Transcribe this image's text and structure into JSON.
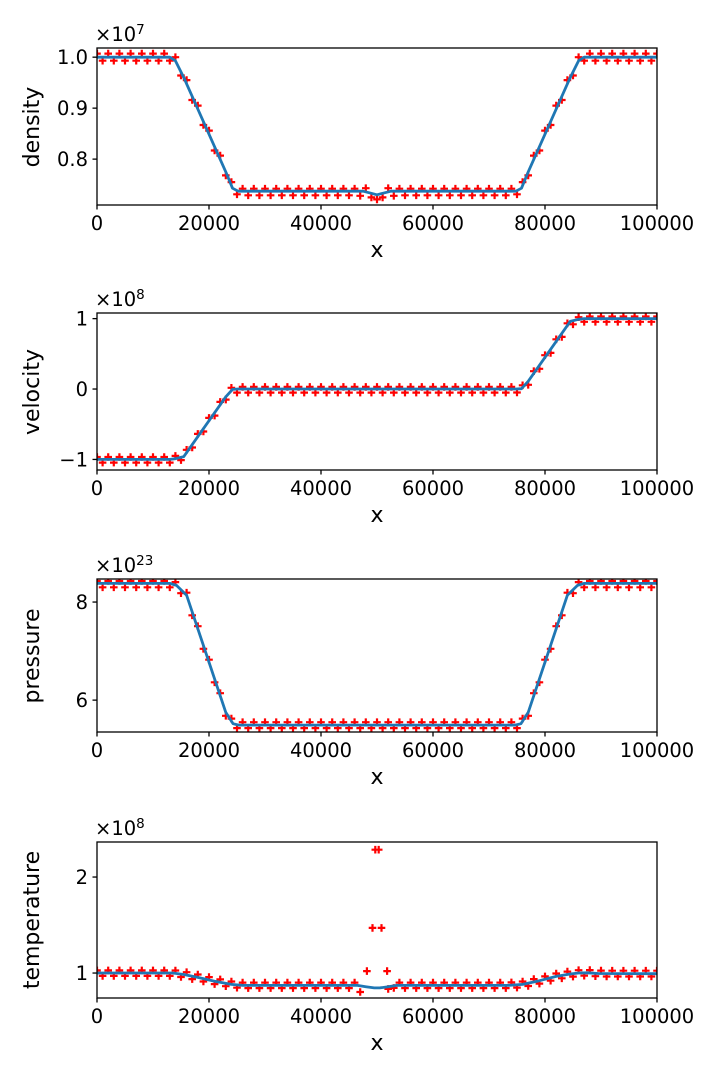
{
  "figure": {
    "background": "#ffffff",
    "line_color": "#1f77b4",
    "marker_color": "#ff0000",
    "marker_style": "plus",
    "text_color": "#000000",
    "grid": false,
    "legend": null
  },
  "chart_data": [
    {
      "type": "line+scatter",
      "title": "",
      "ylabel": "density",
      "xlabel": "x",
      "offset_text": {
        "base": "×10",
        "exp": "7"
      },
      "xlim": [
        0,
        100000
      ],
      "ylim": [
        0.71,
        1.018
      ],
      "xticks": [
        0,
        20000,
        40000,
        60000,
        80000,
        100000
      ],
      "xtick_labels": [
        "0",
        "20000",
        "40000",
        "60000",
        "80000",
        "100000"
      ],
      "yticks": [
        0.8,
        0.9,
        1.0
      ],
      "ytick_labels": [
        "0.8",
        "0.9",
        "1.0"
      ],
      "series": {
        "line": {
          "x": [
            0,
            13000,
            14000,
            15500,
            23000,
            24200,
            25200,
            47500,
            49000,
            50000,
            51000,
            52500,
            74800,
            75800,
            77000,
            84500,
            86000,
            87000,
            100000
          ],
          "y": [
            1.0,
            1.0,
            0.993,
            0.96,
            0.775,
            0.743,
            0.737,
            0.737,
            0.733,
            0.73,
            0.733,
            0.737,
            0.737,
            0.743,
            0.775,
            0.96,
            0.993,
            1.0,
            1.0
          ]
        },
        "markers": {
          "x_start": 0,
          "x_step": 1000,
          "y": [
            1.007,
            0.993,
            1.007,
            0.993,
            1.007,
            0.993,
            1.007,
            0.993,
            1.007,
            0.993,
            1.007,
            0.993,
            1.007,
            0.993,
            1.0,
            0.964,
            0.955,
            0.916,
            0.905,
            0.867,
            0.856,
            0.817,
            0.807,
            0.768,
            0.755,
            0.731,
            0.742,
            0.729,
            0.742,
            0.729,
            0.742,
            0.729,
            0.742,
            0.729,
            0.742,
            0.729,
            0.742,
            0.729,
            0.742,
            0.729,
            0.742,
            0.729,
            0.742,
            0.729,
            0.742,
            0.729,
            0.742,
            0.728,
            0.743,
            0.725,
            0.721,
            0.725,
            0.743,
            0.728,
            0.742,
            0.729,
            0.742,
            0.729,
            0.742,
            0.729,
            0.742,
            0.729,
            0.742,
            0.729,
            0.742,
            0.729,
            0.742,
            0.729,
            0.742,
            0.729,
            0.742,
            0.729,
            0.742,
            0.729,
            0.742,
            0.731,
            0.755,
            0.768,
            0.807,
            0.817,
            0.856,
            0.867,
            0.905,
            0.916,
            0.955,
            0.964,
            1.0,
            0.993,
            1.007,
            0.993,
            1.007,
            0.993,
            1.007,
            0.993,
            1.007,
            0.993,
            1.007,
            0.993,
            1.007,
            0.993,
            1.007
          ]
        }
      }
    },
    {
      "type": "line+scatter",
      "title": "",
      "ylabel": "velocity",
      "xlabel": "x",
      "offset_text": {
        "base": "×10",
        "exp": "8"
      },
      "xlim": [
        0,
        100000
      ],
      "ylim": [
        -1.15,
        1.08
      ],
      "xticks": [
        0,
        20000,
        40000,
        60000,
        80000,
        100000
      ],
      "xtick_labels": [
        "0",
        "20000",
        "40000",
        "60000",
        "80000",
        "100000"
      ],
      "yticks": [
        -1,
        0,
        1
      ],
      "ytick_labels": [
        "−1",
        "0",
        "1"
      ],
      "series": {
        "line": {
          "x": [
            0,
            13000,
            14000,
            15500,
            23000,
            24200,
            25200,
            74800,
            75800,
            77000,
            84500,
            86000,
            87000,
            100000
          ],
          "y": [
            -1.0,
            -1.0,
            -0.99,
            -0.96,
            -0.11,
            -0.005,
            0.0,
            0.0,
            0.005,
            0.11,
            0.96,
            0.99,
            1.0,
            1.0
          ]
        },
        "markers": {
          "x_start": 0,
          "x_step": 1000,
          "y": [
            -0.965,
            -1.045,
            -0.965,
            -1.045,
            -0.965,
            -1.045,
            -0.965,
            -1.045,
            -0.965,
            -1.045,
            -0.965,
            -1.045,
            -0.965,
            -1.045,
            -0.95,
            -1.01,
            -0.863,
            -0.83,
            -0.637,
            -0.603,
            -0.41,
            -0.377,
            -0.183,
            -0.15,
            0.018,
            -0.051,
            0.03,
            -0.05,
            0.03,
            -0.05,
            0.03,
            -0.05,
            0.03,
            -0.05,
            0.03,
            -0.05,
            0.03,
            -0.05,
            0.03,
            -0.05,
            0.03,
            -0.05,
            0.03,
            -0.05,
            0.03,
            -0.05,
            0.03,
            -0.05,
            0.03,
            -0.05,
            0.03,
            -0.05,
            0.03,
            -0.05,
            0.03,
            -0.05,
            0.03,
            -0.05,
            0.03,
            -0.05,
            0.03,
            -0.05,
            0.03,
            -0.05,
            0.03,
            -0.05,
            0.03,
            -0.05,
            0.03,
            -0.05,
            0.03,
            -0.05,
            0.03,
            -0.05,
            0.03,
            -0.049,
            0.053,
            0.06,
            0.253,
            0.287,
            0.48,
            0.513,
            0.707,
            0.74,
            0.933,
            0.92,
            1.02,
            0.955,
            1.03,
            0.955,
            1.03,
            0.955,
            1.03,
            0.955,
            1.03,
            0.955,
            1.03,
            0.955,
            1.03,
            0.955,
            1.03
          ]
        }
      }
    },
    {
      "type": "line+scatter",
      "title": "",
      "ylabel": "pressure",
      "xlabel": "x",
      "offset_text": {
        "base": "×10",
        "exp": "23"
      },
      "xlim": [
        0,
        100000
      ],
      "ylim": [
        5.35,
        8.47
      ],
      "xticks": [
        0,
        20000,
        40000,
        60000,
        80000,
        100000
      ],
      "xtick_labels": [
        "0",
        "20000",
        "40000",
        "60000",
        "80000",
        "100000"
      ],
      "yticks": [
        6,
        8
      ],
      "ytick_labels": [
        "6",
        "8"
      ],
      "series": {
        "line": {
          "x": [
            0,
            13000,
            14200,
            16000,
            23000,
            24300,
            25300,
            74700,
            75700,
            77000,
            84000,
            85800,
            87000,
            100000
          ],
          "y": [
            8.38,
            8.38,
            8.34,
            8.14,
            5.75,
            5.52,
            5.49,
            5.49,
            5.52,
            5.75,
            8.14,
            8.34,
            8.38,
            8.38
          ]
        },
        "markers": {
          "x_start": 0,
          "x_step": 1000,
          "y": [
            8.43,
            8.3,
            8.43,
            8.3,
            8.43,
            8.3,
            8.43,
            8.3,
            8.43,
            8.3,
            8.43,
            8.3,
            8.43,
            8.3,
            8.407,
            8.181,
            8.19,
            7.729,
            7.507,
            7.046,
            6.824,
            6.363,
            6.141,
            5.68,
            5.623,
            5.429,
            5.55,
            5.43,
            5.55,
            5.43,
            5.55,
            5.43,
            5.55,
            5.43,
            5.55,
            5.43,
            5.55,
            5.43,
            5.55,
            5.43,
            5.55,
            5.43,
            5.55,
            5.43,
            5.55,
            5.43,
            5.55,
            5.43,
            5.55,
            5.43,
            5.55,
            5.43,
            5.55,
            5.43,
            5.55,
            5.43,
            5.55,
            5.43,
            5.55,
            5.43,
            5.55,
            5.43,
            5.55,
            5.43,
            5.55,
            5.43,
            5.55,
            5.43,
            5.55,
            5.43,
            5.55,
            5.43,
            5.55,
            5.43,
            5.55,
            5.429,
            5.623,
            5.68,
            6.141,
            6.363,
            6.824,
            7.046,
            7.507,
            7.729,
            8.19,
            8.181,
            8.407,
            8.3,
            8.43,
            8.3,
            8.43,
            8.3,
            8.43,
            8.3,
            8.43,
            8.3,
            8.43,
            8.3,
            8.43,
            8.3,
            8.43
          ]
        }
      }
    },
    {
      "type": "line+scatter",
      "title": "",
      "ylabel": "temperature",
      "xlabel": "x",
      "offset_text": {
        "base": "×10",
        "exp": "8"
      },
      "xlim": [
        0,
        100000
      ],
      "ylim": [
        0.74,
        2.365
      ],
      "xticks": [
        0,
        20000,
        40000,
        60000,
        80000,
        100000
      ],
      "xtick_labels": [
        "0",
        "20000",
        "40000",
        "60000",
        "80000",
        "100000"
      ],
      "yticks": [
        1,
        2
      ],
      "ytick_labels": [
        "1",
        "2"
      ],
      "series": {
        "line": {
          "x": [
            0,
            13500,
            15500,
            18000,
            21000,
            24000,
            26000,
            46500,
            48000,
            49500,
            50500,
            52000,
            53500,
            73500,
            76000,
            79000,
            82000,
            84500,
            86000,
            87500,
            89500,
            100000
          ],
          "y": [
            1.0,
            1.0,
            0.985,
            0.955,
            0.915,
            0.882,
            0.871,
            0.871,
            0.858,
            0.845,
            0.845,
            0.858,
            0.871,
            0.871,
            0.882,
            0.92,
            0.965,
            0.99,
            1.0,
            1.003,
            0.995,
            0.993
          ]
        },
        "markers": {
          "x_start": 0,
          "x_step": 1000,
          "y": [
            1.028,
            0.97,
            1.028,
            0.97,
            1.028,
            0.97,
            1.028,
            0.97,
            1.028,
            0.97,
            1.028,
            0.97,
            1.028,
            0.97,
            1.026,
            0.959,
            1.009,
            0.937,
            0.985,
            0.912,
            0.958,
            0.885,
            0.934,
            0.863,
            0.912,
            0.847,
            0.9,
            0.843,
            0.9,
            0.843,
            0.9,
            0.843,
            0.9,
            0.843,
            0.9,
            0.843,
            0.9,
            0.843,
            0.9,
            0.843,
            0.9,
            0.843,
            0.9,
            0.843,
            0.9,
            0.843,
            0.9,
            0.803,
            null,
            null,
            null,
            null,
            0.835,
            0.845,
            0.9,
            0.843,
            0.9,
            0.843,
            0.9,
            0.843,
            0.9,
            0.843,
            0.9,
            0.843,
            0.9,
            0.843,
            0.9,
            0.843,
            0.9,
            0.843,
            0.9,
            0.843,
            0.9,
            0.843,
            0.903,
            0.848,
            0.912,
            0.865,
            0.937,
            0.89,
            0.965,
            0.92,
            0.995,
            0.945,
            1.015,
            0.963,
            1.03,
            0.972,
            1.031,
            0.967,
            1.025,
            0.964,
            1.024,
            0.964,
            1.024,
            0.964,
            1.024,
            0.964,
            1.024,
            0.964,
            1.024
          ],
          "extra_x": [
            48200,
            49200,
            49700,
            50300,
            50800,
            51800
          ],
          "extra_y": [
            1.02,
            1.47,
            2.285,
            2.285,
            1.47,
            1.02
          ]
        }
      }
    }
  ]
}
